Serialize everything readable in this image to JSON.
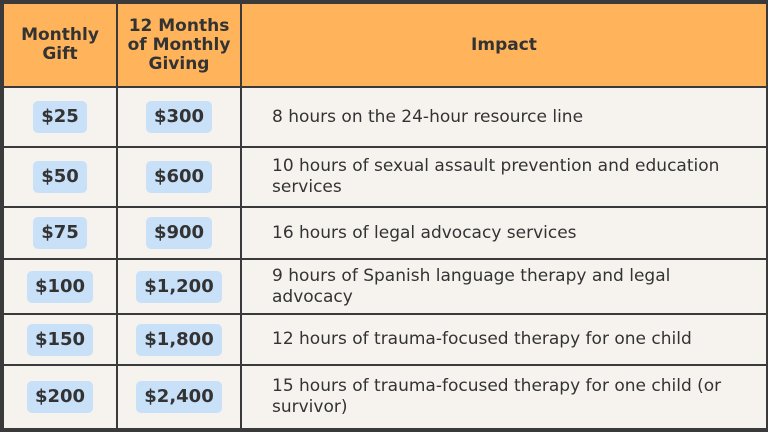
{
  "table": {
    "headers": {
      "monthly_gift": "Monthly Gift",
      "twelve_months": "12 Months of Monthly Giving",
      "impact": "Impact"
    },
    "rows": [
      {
        "monthly": "$25",
        "annual": "$300",
        "impact": "8 hours on the 24-hour resource line"
      },
      {
        "monthly": "$50",
        "annual": "$600",
        "impact": "10 hours of sexual assault prevention and education services"
      },
      {
        "monthly": "$75",
        "annual": "$900",
        "impact": "16 hours of legal advocacy services"
      },
      {
        "monthly": "$100",
        "annual": "$1,200",
        "impact": "9 hours of Spanish language therapy and legal advocacy"
      },
      {
        "monthly": "$150",
        "annual": "$1,800",
        "impact": "12 hours of trauma-focused therapy for one child"
      },
      {
        "monthly": "$200",
        "annual": "$2,400",
        "impact": "15 hours of trauma-focused therapy for one child (or survivor)"
      }
    ]
  },
  "colors": {
    "header_bg": "#ffb45c",
    "pill_bg": "#c8e0f8",
    "body_bg": "#f6f3ef",
    "border": "#3a3a3a",
    "text": "#333333"
  }
}
